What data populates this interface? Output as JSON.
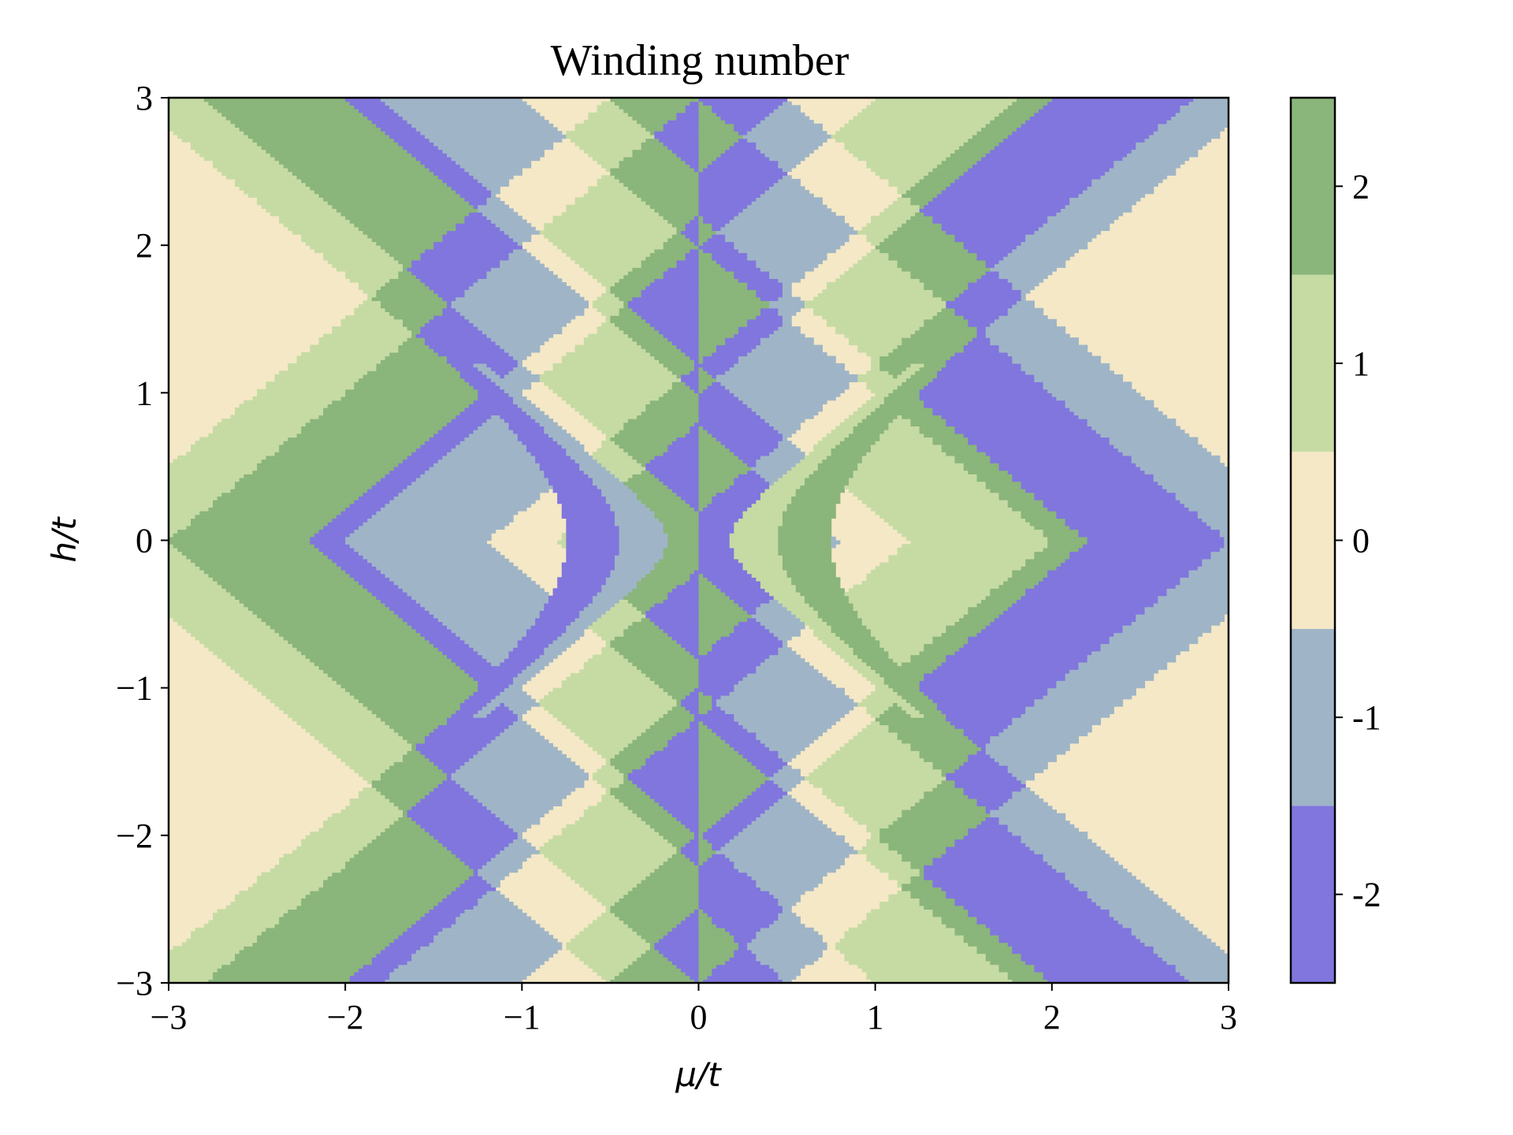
{
  "chart_data": {
    "type": "heatmap",
    "title": "Winding number",
    "xlabel": "μ/t",
    "ylabel": "h/t",
    "xlim": [
      -3,
      3
    ],
    "ylim": [
      -3,
      3
    ],
    "xticks": [
      "−3",
      "−2",
      "−1",
      "0",
      "1",
      "2",
      "3"
    ],
    "xtick_values": [
      -3,
      -2,
      -1,
      0,
      1,
      2,
      3
    ],
    "yticks": [
      "3",
      "2",
      "1",
      "0",
      "−1",
      "−2",
      "−3"
    ],
    "ytick_values": [
      3,
      2,
      1,
      0,
      -1,
      -2,
      -3
    ],
    "grid": false,
    "colorbar": {
      "levels": [
        -2,
        -1,
        0,
        1,
        2
      ],
      "labels": [
        "-2",
        "-1",
        "0",
        "1",
        "2"
      ],
      "colors": [
        "#8076dd",
        "#9fb5c7",
        "#f5e8c6",
        "#c6dba4",
        "#8ab57b"
      ],
      "range": [
        -2.5,
        2.5
      ]
    },
    "model": {
      "description": "Winding number W(μ,h) on a grid over μ/t ∈ [-3,3], h/t ∈ [-3,3]; bands bounded by lines μ ± h = const",
      "diagonal_offsets": [
        0.8,
        1.2,
        2.0,
        2.2,
        3.0,
        3.5
      ],
      "hyperbola_offsets": [
        0.2,
        0.7,
        0.9
      ],
      "hyperbola_width": 0.25,
      "grid_resolution": 240
    }
  }
}
